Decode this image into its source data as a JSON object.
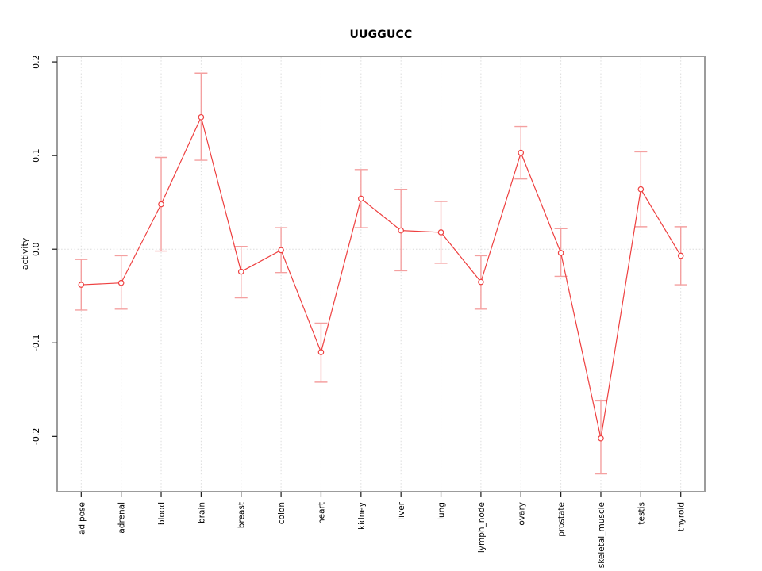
{
  "title": "UUGGUCC",
  "chart_data": {
    "type": "line",
    "title": "UUGGUCC",
    "xlabel": "",
    "ylabel": "activity",
    "categories": [
      "adipose",
      "adrenal",
      "blood",
      "brain",
      "breast",
      "colon",
      "heart",
      "kidney",
      "liver",
      "lung",
      "lymph_node",
      "ovary",
      "prostate",
      "skeletal_muscle",
      "testis",
      "thyroid"
    ],
    "series": [
      {
        "name": "UUGGUCC activity",
        "values": [
          -0.038,
          -0.036,
          0.048,
          0.141,
          -0.024,
          -0.001,
          -0.11,
          0.054,
          0.02,
          0.018,
          -0.035,
          0.103,
          -0.004,
          -0.202,
          0.064,
          -0.007
        ],
        "error_upper": [
          -0.011,
          -0.007,
          0.098,
          0.188,
          0.003,
          0.023,
          -0.079,
          0.085,
          0.064,
          0.051,
          -0.007,
          0.131,
          0.022,
          -0.162,
          0.104,
          0.024
        ],
        "error_lower": [
          -0.065,
          -0.064,
          -0.002,
          0.095,
          -0.052,
          -0.025,
          -0.142,
          0.023,
          -0.023,
          -0.015,
          -0.064,
          0.075,
          -0.029,
          -0.24,
          0.024,
          -0.038
        ]
      }
    ],
    "ylim": [
      -0.259,
      0.206
    ],
    "yticks": {
      "values": [
        0.2,
        0.1,
        0.0,
        -0.1,
        -0.2
      ],
      "labels": [
        "0.2",
        "0.1",
        "0.0",
        "-0.1",
        "-0.2"
      ]
    },
    "grid": {
      "vertical_dotted_per_category": true,
      "horizontal_dotted_at_zero": true
    },
    "legend": "none",
    "marker": "open-circle",
    "error_bars": true
  },
  "colors": {
    "line": "#ee4040",
    "marker_stroke": "#ee4040",
    "marker_fill": "#ffffff",
    "error_bar": "#f4a0a0",
    "frame": "#9c9c9c",
    "grid": "#dcdcdc",
    "tick": "#1a1a1a",
    "tick_text": "#000000",
    "background": "#ffffff"
  }
}
